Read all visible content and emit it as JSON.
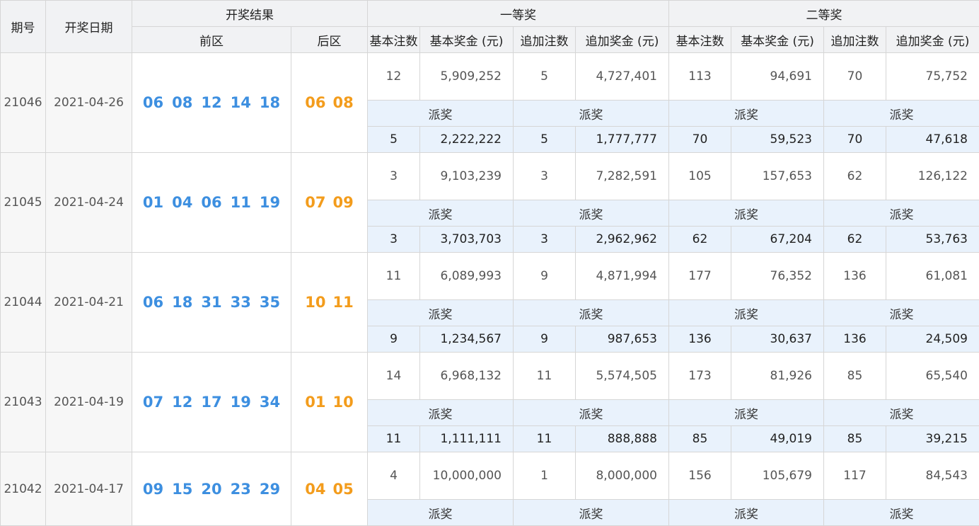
{
  "headers": {
    "issue": "期号",
    "date": "开奖日期",
    "result": "开奖结果",
    "front": "前区",
    "back": "后区",
    "first_prize": "一等奖",
    "second_prize": "二等奖",
    "basic_count": "基本注数",
    "basic_amount": "基本奖金 (元)",
    "extra_count": "追加注数",
    "extra_amount": "追加奖金 (元)"
  },
  "pai_label": "派奖",
  "draws": [
    {
      "issue": "21046",
      "date": "2021-04-26",
      "front": [
        "06",
        "08",
        "12",
        "14",
        "18"
      ],
      "back": [
        "06",
        "08"
      ],
      "prize": [
        "12",
        "5,909,252",
        "5",
        "4,727,401",
        "113",
        "94,691",
        "70",
        "75,752"
      ],
      "pai": [
        "5",
        "2,222,222",
        "5",
        "1,777,777",
        "70",
        "59,523",
        "70",
        "47,618"
      ]
    },
    {
      "issue": "21045",
      "date": "2021-04-24",
      "front": [
        "01",
        "04",
        "06",
        "11",
        "19"
      ],
      "back": [
        "07",
        "09"
      ],
      "prize": [
        "3",
        "9,103,239",
        "3",
        "7,282,591",
        "105",
        "157,653",
        "62",
        "126,122"
      ],
      "pai": [
        "3",
        "3,703,703",
        "3",
        "2,962,962",
        "62",
        "67,204",
        "62",
        "53,763"
      ]
    },
    {
      "issue": "21044",
      "date": "2021-04-21",
      "front": [
        "06",
        "18",
        "31",
        "33",
        "35"
      ],
      "back": [
        "10",
        "11"
      ],
      "prize": [
        "11",
        "6,089,993",
        "9",
        "4,871,994",
        "177",
        "76,352",
        "136",
        "61,081"
      ],
      "pai": [
        "9",
        "1,234,567",
        "9",
        "987,653",
        "136",
        "30,637",
        "136",
        "24,509"
      ]
    },
    {
      "issue": "21043",
      "date": "2021-04-19",
      "front": [
        "07",
        "12",
        "17",
        "19",
        "34"
      ],
      "back": [
        "01",
        "10"
      ],
      "prize": [
        "14",
        "6,968,132",
        "11",
        "5,574,505",
        "173",
        "81,926",
        "85",
        "65,540"
      ],
      "pai": [
        "11",
        "1,111,111",
        "11",
        "888,888",
        "85",
        "49,019",
        "85",
        "39,215"
      ]
    },
    {
      "issue": "21042",
      "date": "2021-04-17",
      "front": [
        "09",
        "15",
        "20",
        "23",
        "29"
      ],
      "back": [
        "04",
        "05"
      ],
      "prize": [
        "4",
        "10,000,000",
        "1",
        "8,000,000",
        "156",
        "105,679",
        "117",
        "84,543"
      ],
      "pai": []
    }
  ]
}
